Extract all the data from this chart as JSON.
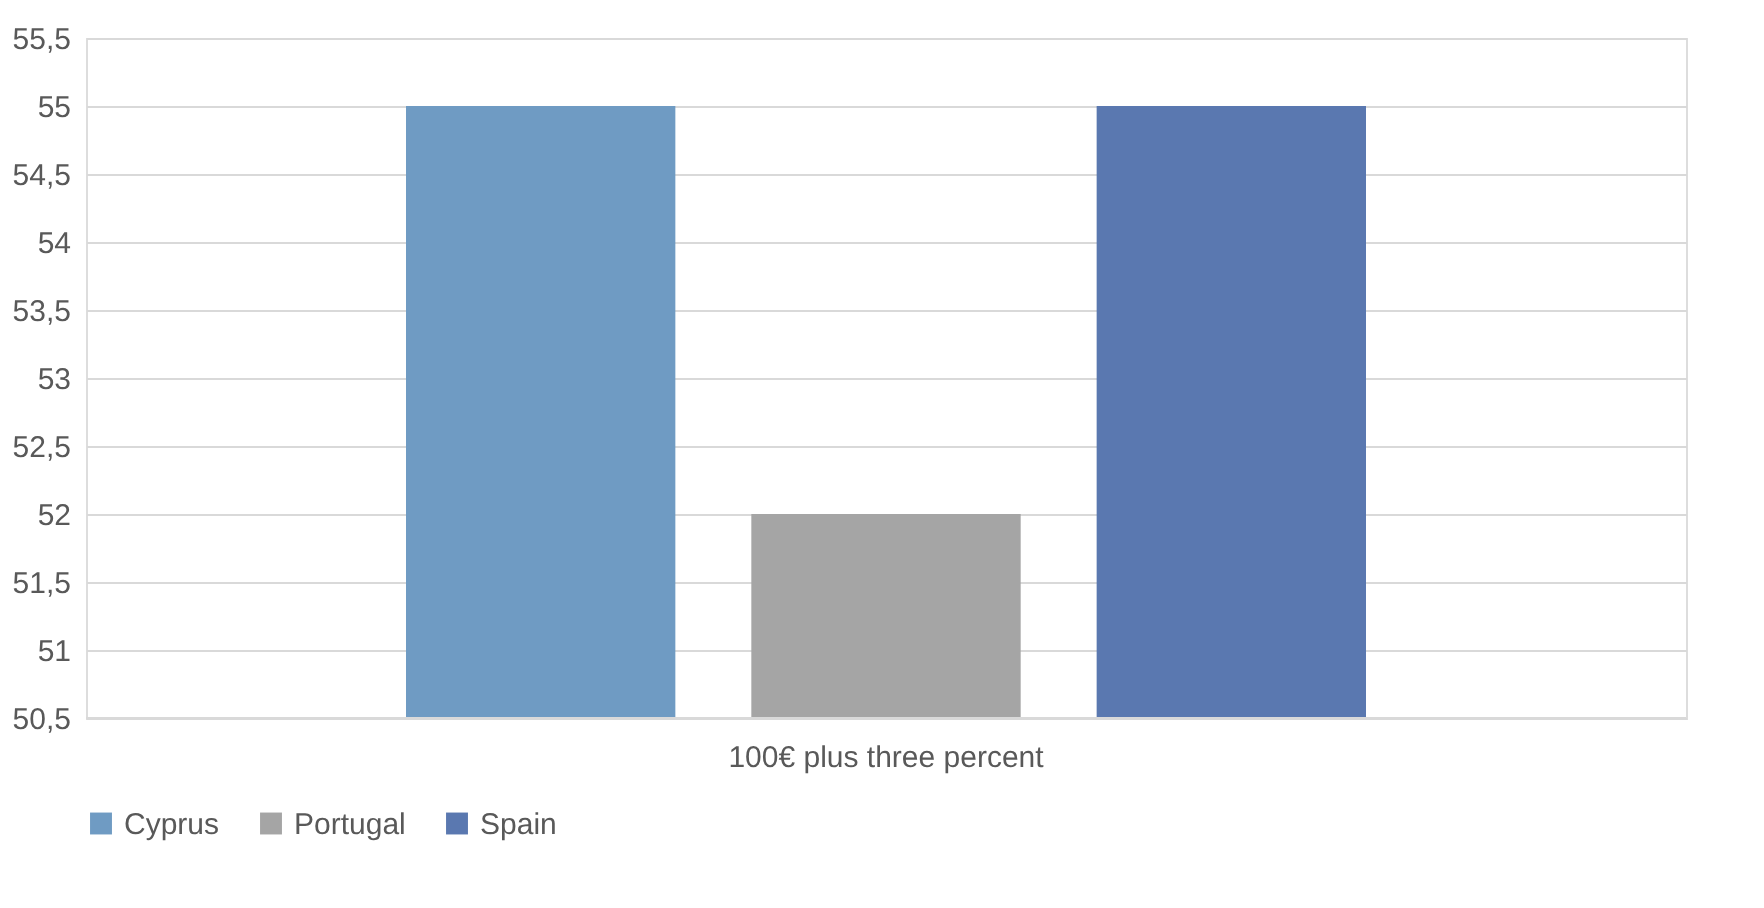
{
  "chart_data": {
    "type": "bar",
    "categories": [
      "100€ plus three percent"
    ],
    "series": [
      {
        "name": "Cyprus",
        "color": "#6f9bc3",
        "values": [
          55
        ]
      },
      {
        "name": "Portugal",
        "color": "#a5a5a5",
        "values": [
          52
        ]
      },
      {
        "name": "Spain",
        "color": "#5a78b0",
        "values": [
          55
        ]
      }
    ],
    "ylim": [
      50.5,
      55.5
    ],
    "yticks": [
      {
        "value": 50.5,
        "label": "50,5"
      },
      51,
      {
        "value": 51.5,
        "label": "51,5"
      },
      52,
      {
        "value": 52.5,
        "label": "52,5"
      },
      53,
      {
        "value": 53.5,
        "label": "53,5"
      },
      54,
      {
        "value": 54.5,
        "label": "54,5"
      },
      55,
      {
        "value": 55.5,
        "label": "55,5"
      }
    ],
    "grid": "y",
    "legend": "bottom"
  }
}
